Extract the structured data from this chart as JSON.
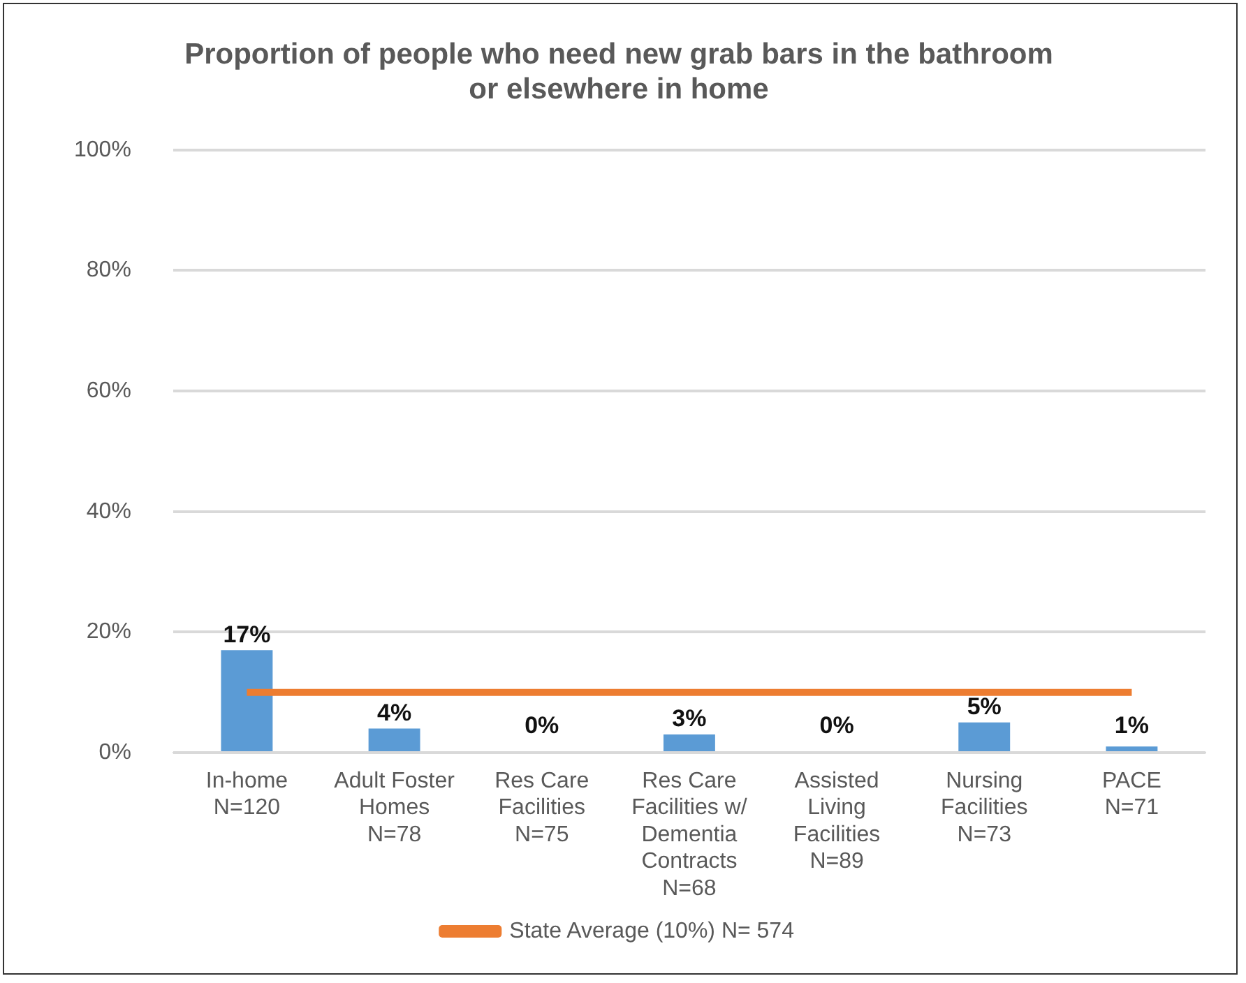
{
  "chart_data": {
    "type": "bar",
    "title": "Proportion of people who need new grab bars in the bathroom\nor elsewhere in home",
    "categories": [
      "In-home\nN=120",
      "Adult Foster\nHomes\nN=78",
      "Res Care\nFacilities\nN=75",
      "Res Care\nFacilities w/\nDementia\nContracts\nN=68",
      "Assisted\nLiving\nFacilities\nN=89",
      "Nursing\nFacilities\nN=73",
      "PACE\nN=71"
    ],
    "series": [
      {
        "color": "#5b9bd5",
        "values": [
          17,
          4,
          0,
          3,
          0,
          5,
          1
        ],
        "value_labels": [
          "17%",
          "4%",
          "0%",
          "3%",
          "0%",
          "5%",
          "1%"
        ]
      },
      {
        "type": "line",
        "name": "State Average (10%) N= 574",
        "color": "#ed7d31",
        "values": [
          10,
          10,
          10,
          10,
          10,
          10,
          10
        ]
      }
    ],
    "ylim": [
      0,
      100
    ],
    "yticks": [
      {
        "value": 0,
        "label": "0%"
      },
      {
        "value": 20,
        "label": "20%"
      },
      {
        "value": 40,
        "label": "40%"
      },
      {
        "value": 60,
        "label": "60%"
      },
      {
        "value": 80,
        "label": "80%"
      },
      {
        "value": 100,
        "label": "100%"
      }
    ],
    "grid": "y",
    "legend": "bottom",
    "marker": "none",
    "line_style": "solid"
  }
}
